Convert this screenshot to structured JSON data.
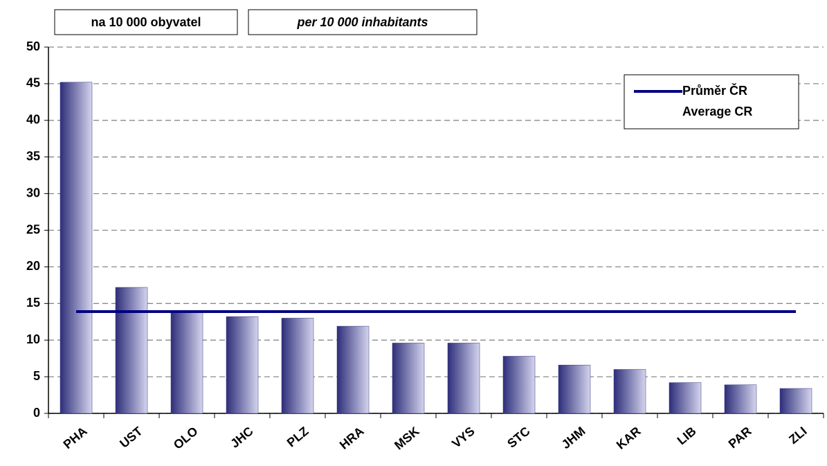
{
  "chart_data": {
    "type": "bar",
    "annotations": [
      "na 10 000 obyvatel",
      "per 10 000  inhabitants"
    ],
    "categories": [
      "PHA",
      "UST",
      "OLO",
      "JHC",
      "PLZ",
      "HRA",
      "MSK",
      "VYS",
      "STC",
      "JHM",
      "KAR",
      "LIB",
      "PAR",
      "ZLI"
    ],
    "series": [
      {
        "type": "bar",
        "color": "#33337f",
        "values": [
          45.2,
          17.2,
          13.9,
          13.2,
          13.0,
          11.9,
          9.6,
          9.6,
          7.8,
          6.6,
          6.0,
          4.2,
          3.9,
          3.4
        ]
      },
      {
        "type": "line",
        "name": [
          "Průměr ČR",
          "Average CR"
        ],
        "color": "#000080",
        "values": [
          13.9,
          13.9,
          13.9,
          13.9,
          13.9,
          13.9,
          13.9,
          13.9,
          13.9,
          13.9,
          13.9,
          13.9,
          13.9,
          13.9
        ]
      }
    ],
    "ylim": [
      0,
      50
    ],
    "yticks": [
      0,
      5,
      10,
      15,
      20,
      25,
      30,
      35,
      40,
      45,
      50
    ],
    "grid": true,
    "legend": "upper right"
  }
}
